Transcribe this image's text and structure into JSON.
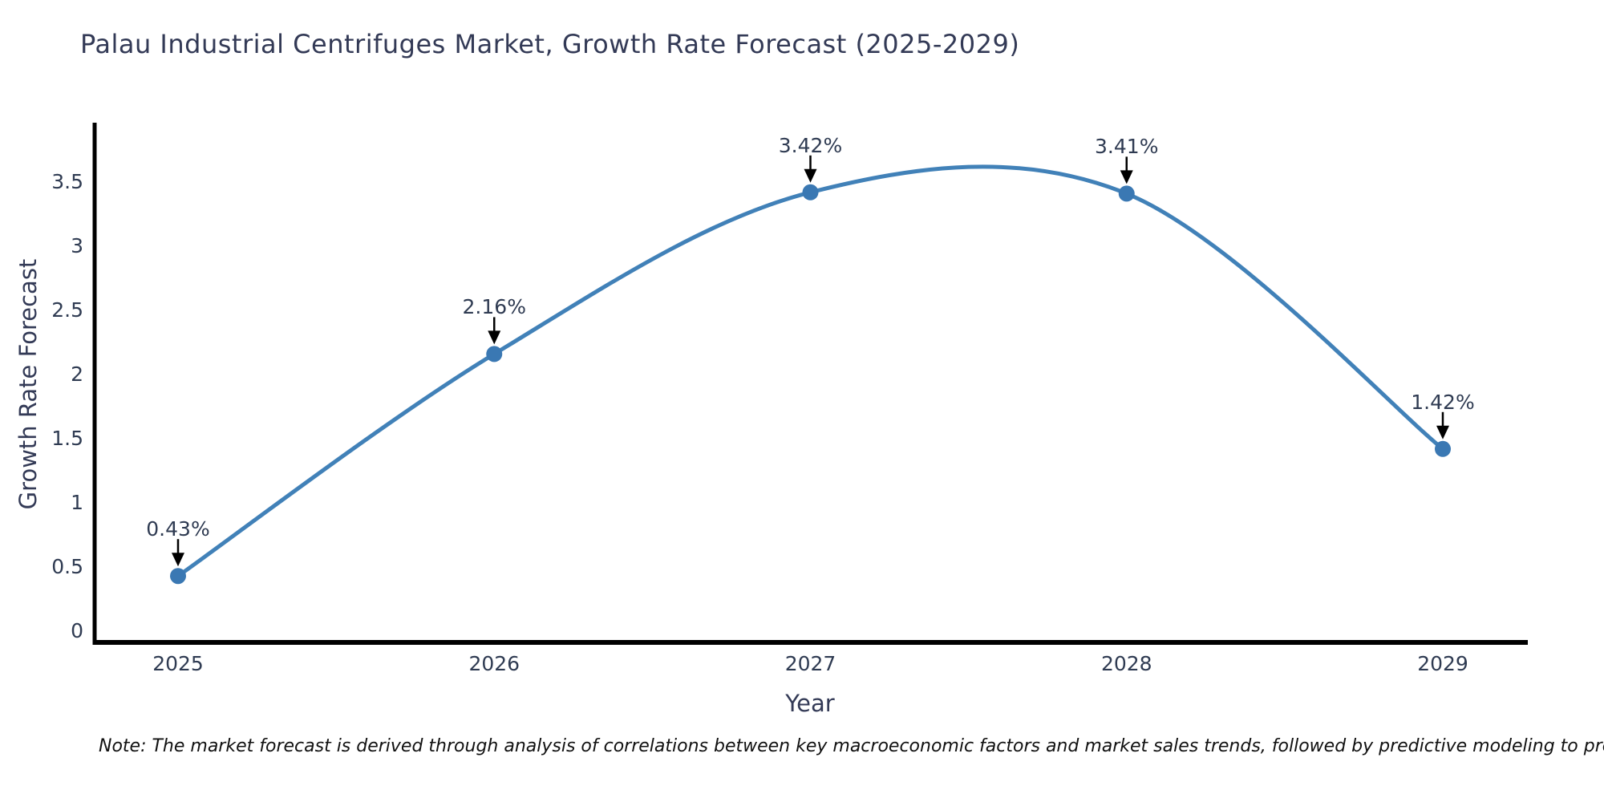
{
  "title": "Palau Industrial Centrifuges Market, Growth Rate Forecast (2025-2029)",
  "note": "Note: The market forecast is derived through analysis of correlations between key macroeconomic factors and market sales trends, followed by predictive modeling to project future sales",
  "colors": {
    "line": "#4181b8",
    "marker": "#3a78b3",
    "axis": "#000000",
    "title_text": "#333a56",
    "tick_text": "#2f3b52",
    "note_text": "#111111",
    "background": "#ffffff"
  },
  "chart_data": {
    "type": "line",
    "line_shape": "spline",
    "markers": true,
    "grid": false,
    "legend": false,
    "title": "Palau Industrial Centrifuges Market, Growth Rate Forecast (2025-2029)",
    "xlabel": "Year",
    "ylabel": "Growth Rate Forecast",
    "x": [
      2025,
      2026,
      2027,
      2028,
      2029
    ],
    "xticks": [
      "2025",
      "2026",
      "2027",
      "2028",
      "2029"
    ],
    "yticks": [
      "0",
      "0.5",
      "1",
      "1.5",
      "2",
      "2.5",
      "3",
      "3.5"
    ],
    "ylim": [
      0,
      3.95
    ],
    "series": [
      {
        "name": "Growth Rate Forecast",
        "values": [
          0.43,
          2.16,
          3.42,
          3.41,
          1.42
        ]
      }
    ],
    "point_labels": [
      "0.43%",
      "2.16%",
      "3.42%",
      "3.41%",
      "1.42%"
    ],
    "annotations_arrows": true
  }
}
